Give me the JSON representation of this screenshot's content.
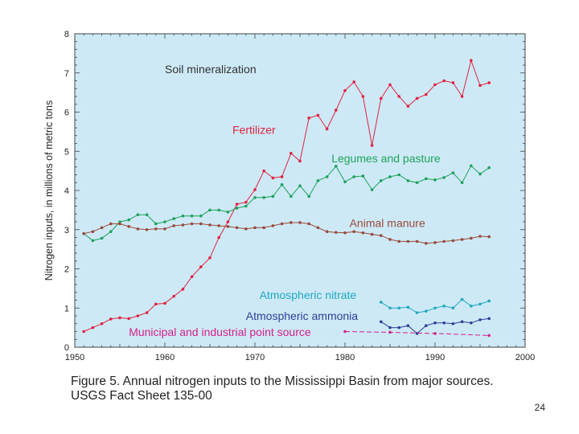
{
  "caption": {
    "line1": "Figure 5. Annual nitrogen inputs to the Mississippi Basin from major sources.",
    "line2": "USGS Fact Sheet 135-00"
  },
  "page_number": "24",
  "colors": {
    "background": "#cde9f6",
    "fertilizer": "#e0233e",
    "legumes": "#1ea25a",
    "manure": "#9a4a3a",
    "nitrate": "#1fa8c0",
    "ammonia": "#2f3f98",
    "municipal": "#d6208a",
    "soil_label": "#333333"
  },
  "chart_data": {
    "type": "line",
    "title": "",
    "xlabel": "",
    "ylabel": "Nitrogen inputs, in millions of metric tons",
    "xlim": [
      1950,
      2000
    ],
    "ylim": [
      0,
      8
    ],
    "xticks": [
      1950,
      1960,
      1970,
      1980,
      1990,
      2000
    ],
    "yticks": [
      0,
      1,
      2,
      3,
      4,
      5,
      6,
      7,
      8
    ],
    "grid": false,
    "annotations": [
      {
        "text": "Soil mineralization",
        "x": 1960,
        "y": 7.0
      }
    ],
    "series": [
      {
        "name": "Fertilizer",
        "color_key": "fertilizer",
        "label_pos": {
          "x": 1967.5,
          "y": 5.45
        },
        "x": [
          1951,
          1952,
          1953,
          1954,
          1955,
          1956,
          1957,
          1958,
          1959,
          1960,
          1961,
          1962,
          1963,
          1964,
          1965,
          1966,
          1967,
          1968,
          1969,
          1970,
          1971,
          1972,
          1973,
          1974,
          1975,
          1976,
          1977,
          1978,
          1979,
          1980,
          1981,
          1982,
          1983,
          1984,
          1985,
          1986,
          1987,
          1988,
          1989,
          1990,
          1991,
          1992,
          1993,
          1994,
          1995,
          1996
        ],
        "values": [
          0.4,
          0.5,
          0.6,
          0.72,
          0.75,
          0.73,
          0.8,
          0.88,
          1.1,
          1.12,
          1.3,
          1.48,
          1.8,
          2.05,
          2.28,
          2.8,
          3.2,
          3.65,
          3.7,
          4.02,
          4.5,
          4.32,
          4.35,
          4.95,
          4.75,
          5.85,
          5.92,
          5.57,
          6.05,
          6.55,
          6.77,
          6.4,
          5.15,
          6.35,
          6.7,
          6.4,
          6.15,
          6.35,
          6.45,
          6.7,
          6.8,
          6.75,
          6.4,
          7.32,
          6.68,
          6.75
        ]
      },
      {
        "name": "Legumes and pasture",
        "color_key": "legumes",
        "label_pos": {
          "x": 1978.5,
          "y": 4.72
        },
        "x": [
          1951,
          1952,
          1953,
          1954,
          1955,
          1956,
          1957,
          1958,
          1959,
          1960,
          1961,
          1962,
          1963,
          1964,
          1965,
          1966,
          1967,
          1968,
          1969,
          1970,
          1971,
          1972,
          1973,
          1974,
          1975,
          1976,
          1977,
          1978,
          1979,
          1980,
          1981,
          1982,
          1983,
          1984,
          1985,
          1986,
          1987,
          1988,
          1989,
          1990,
          1991,
          1992,
          1993,
          1994,
          1995,
          1996
        ],
        "values": [
          2.9,
          2.72,
          2.78,
          2.95,
          3.2,
          3.25,
          3.38,
          3.38,
          3.15,
          3.2,
          3.28,
          3.35,
          3.35,
          3.35,
          3.5,
          3.5,
          3.45,
          3.55,
          3.6,
          3.82,
          3.82,
          3.85,
          4.15,
          3.85,
          4.12,
          3.85,
          4.25,
          4.35,
          4.62,
          4.22,
          4.35,
          4.37,
          4.02,
          4.25,
          4.35,
          4.4,
          4.25,
          4.2,
          4.3,
          4.27,
          4.33,
          4.45,
          4.2,
          4.63,
          4.42,
          4.58
        ]
      },
      {
        "name": "Animal manure",
        "color_key": "manure",
        "label_pos": {
          "x": 1980.5,
          "y": 3.07
        },
        "x": [
          1951,
          1952,
          1953,
          1954,
          1955,
          1956,
          1957,
          1958,
          1959,
          1960,
          1961,
          1962,
          1963,
          1964,
          1965,
          1966,
          1967,
          1968,
          1969,
          1970,
          1971,
          1972,
          1973,
          1974,
          1975,
          1976,
          1977,
          1978,
          1979,
          1980,
          1981,
          1982,
          1983,
          1984,
          1985,
          1986,
          1987,
          1988,
          1989,
          1990,
          1991,
          1992,
          1993,
          1994,
          1995,
          1996
        ],
        "values": [
          2.9,
          2.95,
          3.05,
          3.15,
          3.15,
          3.08,
          3.02,
          3.0,
          3.02,
          3.02,
          3.1,
          3.12,
          3.15,
          3.15,
          3.12,
          3.1,
          3.08,
          3.05,
          3.02,
          3.05,
          3.05,
          3.1,
          3.15,
          3.18,
          3.18,
          3.15,
          3.05,
          2.95,
          2.93,
          2.92,
          2.95,
          2.92,
          2.88,
          2.85,
          2.75,
          2.7,
          2.7,
          2.7,
          2.65,
          2.67,
          2.7,
          2.72,
          2.75,
          2.78,
          2.83,
          2.82
        ]
      },
      {
        "name": "Atmospheric nitrate",
        "color_key": "nitrate",
        "label_pos": {
          "x": 1970.5,
          "y": 1.23
        },
        "x": [
          1984,
          1985,
          1986,
          1987,
          1988,
          1989,
          1990,
          1991,
          1992,
          1993,
          1994,
          1995,
          1996
        ],
        "values": [
          1.15,
          1.0,
          1.0,
          1.02,
          0.88,
          0.92,
          1.0,
          1.05,
          1.0,
          1.22,
          1.05,
          1.1,
          1.18
        ]
      },
      {
        "name": "Atmospheric ammonia",
        "color_key": "ammonia",
        "label_pos": {
          "x": 1969.0,
          "y": 0.7
        },
        "x": [
          1984,
          1985,
          1986,
          1987,
          1988,
          1989,
          1990,
          1991,
          1992,
          1993,
          1994,
          1995,
          1996
        ],
        "values": [
          0.65,
          0.5,
          0.5,
          0.55,
          0.35,
          0.55,
          0.62,
          0.62,
          0.6,
          0.65,
          0.62,
          0.7,
          0.73
        ]
      },
      {
        "name": "Municipal and industrial point source",
        "color_key": "municipal",
        "label_pos": {
          "x": 1956.0,
          "y": 0.29
        },
        "x": [
          1980,
          1985,
          1990,
          1996
        ],
        "values": [
          0.4,
          0.38,
          0.35,
          0.3
        ]
      }
    ]
  }
}
